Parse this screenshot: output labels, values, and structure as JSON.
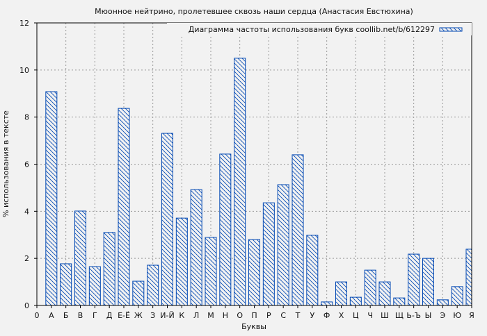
{
  "chart_data": {
    "type": "bar",
    "title": "Мюонное нейтрино, пролетевшее сквозь наши сердца (Анастасия Евстюхина)",
    "xlabel": "Буквы",
    "ylabel": "% использования в тексте",
    "ylim": [
      0,
      12
    ],
    "yticks": [
      0,
      2,
      4,
      6,
      8,
      10,
      12
    ],
    "grid": true,
    "legend_position": "top-right",
    "bar_color": "#0047b3",
    "background": "#f2f2f2",
    "categories": [
      "0",
      "А",
      "Б",
      "В",
      "Г",
      "Д",
      "Е-Ё",
      "Ж",
      "З",
      "И-Й",
      "К",
      "Л",
      "М",
      "Н",
      "О",
      "П",
      "Р",
      "С",
      "Т",
      "У",
      "Ф",
      "Х",
      "Ц",
      "Ч",
      "Ш",
      "Щ",
      "Ь-Ъ",
      "Ы",
      "Э",
      "Ю",
      "Я"
    ],
    "series": [
      {
        "name": "Диаграмма частоты использования букв coollib.net/b/612297",
        "values": [
          null,
          9.08,
          1.77,
          4.01,
          1.65,
          3.1,
          8.37,
          1.03,
          1.71,
          7.31,
          3.71,
          4.92,
          2.89,
          6.43,
          10.5,
          2.8,
          4.36,
          5.13,
          6.4,
          2.98,
          0.15,
          1.0,
          0.35,
          1.5,
          1.0,
          0.32,
          2.18,
          2.0,
          0.24,
          0.8,
          2.39
        ]
      }
    ]
  }
}
